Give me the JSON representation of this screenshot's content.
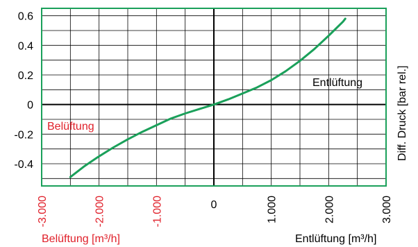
{
  "chart_data": {
    "type": "line",
    "title": "",
    "xlabel_left": "Belüftung [m³/h]",
    "xlabel_right": "Entlüftung [m³/h]",
    "ylabel": "Diff. Druck [bar rel.]",
    "annotations": {
      "left": "Belüftung",
      "right": "Entlüftung"
    },
    "xlim": [
      -3000,
      3000
    ],
    "ylim": [
      -0.55,
      0.65
    ],
    "x_ticks": [
      {
        "value": -3000,
        "label": "-3.000",
        "side": "negative"
      },
      {
        "value": -2000,
        "label": "-2.000",
        "side": "negative"
      },
      {
        "value": -1000,
        "label": "-1.000",
        "side": "negative"
      },
      {
        "value": 0,
        "label": "0",
        "side": "zero"
      },
      {
        "value": 1000,
        "label": "1.000",
        "side": "positive"
      },
      {
        "value": 2000,
        "label": "2.000",
        "side": "positive"
      },
      {
        "value": 3000,
        "label": "3.000",
        "side": "positive"
      }
    ],
    "y_ticks": [
      {
        "value": 0.6,
        "label": "0.6"
      },
      {
        "value": 0.4,
        "label": "0.4"
      },
      {
        "value": 0.2,
        "label": "0.2"
      },
      {
        "value": 0,
        "label": "0"
      },
      {
        "value": -0.2,
        "label": "-0.2"
      },
      {
        "value": -0.4,
        "label": "-0.4"
      }
    ],
    "grid": true,
    "colors": {
      "curve": "#1aa05a",
      "frame": "#1aa05a",
      "grid": "#000000",
      "negative_label": "#e0202a",
      "positive_label": "#000000"
    },
    "series": [
      {
        "x": [
          -2500,
          -2250,
          -2000,
          -1750,
          -1500,
          -1250,
          -1000,
          -750,
          -500,
          -250,
          0,
          250,
          500,
          750,
          1000,
          1250,
          1500,
          1750,
          2000,
          2250,
          2290
        ],
        "y": [
          -0.49,
          -0.415,
          -0.35,
          -0.29,
          -0.235,
          -0.185,
          -0.14,
          -0.095,
          -0.06,
          -0.03,
          0.0,
          0.035,
          0.075,
          0.115,
          0.165,
          0.225,
          0.295,
          0.375,
          0.465,
          0.56,
          0.58
        ]
      }
    ]
  }
}
